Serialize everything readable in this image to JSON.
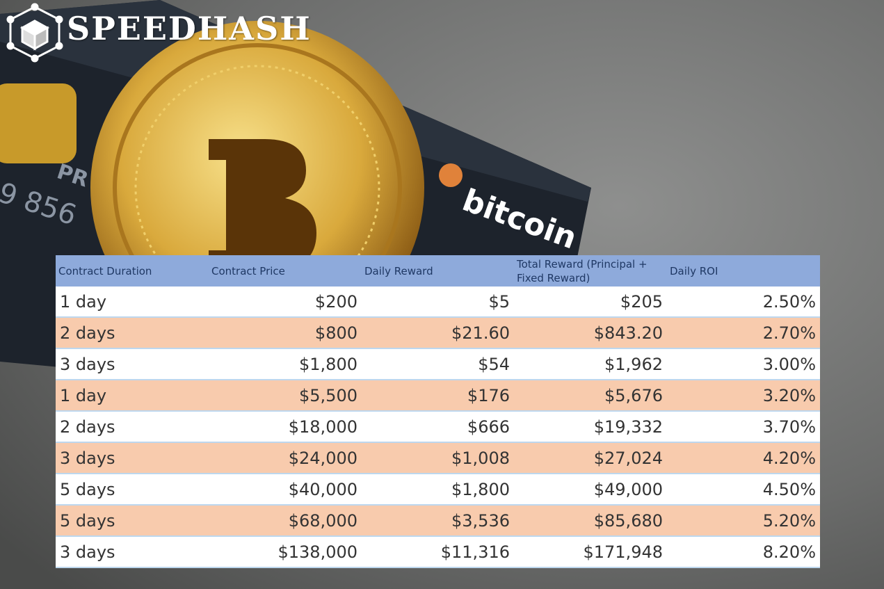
{
  "brand": "SPEEDHASH",
  "card": {
    "logo_text": "bitcoin",
    "number_fragment": "9 856",
    "name_fragment": "PR"
  },
  "table": {
    "headers": [
      "Contract Duration",
      "Contract Price",
      "Daily Reward",
      "Total Reward (Principal + Fixed Reward)",
      "Daily ROI"
    ],
    "rows": [
      [
        "1 day",
        "$200",
        "$5",
        "$205",
        "2.50%"
      ],
      [
        "2 days",
        "$800",
        "$21.60",
        "$843.20",
        "2.70%"
      ],
      [
        "3 days",
        "$1,800",
        "$54",
        "$1,962",
        "3.00%"
      ],
      [
        "1 day",
        "$5,500",
        "$176",
        "$5,676",
        "3.20%"
      ],
      [
        "2 days",
        "$18,000",
        "$666",
        "$19,332",
        "3.70%"
      ],
      [
        "3 days",
        "$24,000",
        "$1,008",
        "$27,024",
        "4.20%"
      ],
      [
        "5 days",
        "$40,000",
        "$1,800",
        "$49,000",
        "4.50%"
      ],
      [
        "5 days",
        "$68,000",
        "$3,536",
        "$85,680",
        "5.20%"
      ],
      [
        "3 days",
        "$138,000",
        "$11,316",
        "$171,948",
        "8.20%"
      ]
    ]
  }
}
